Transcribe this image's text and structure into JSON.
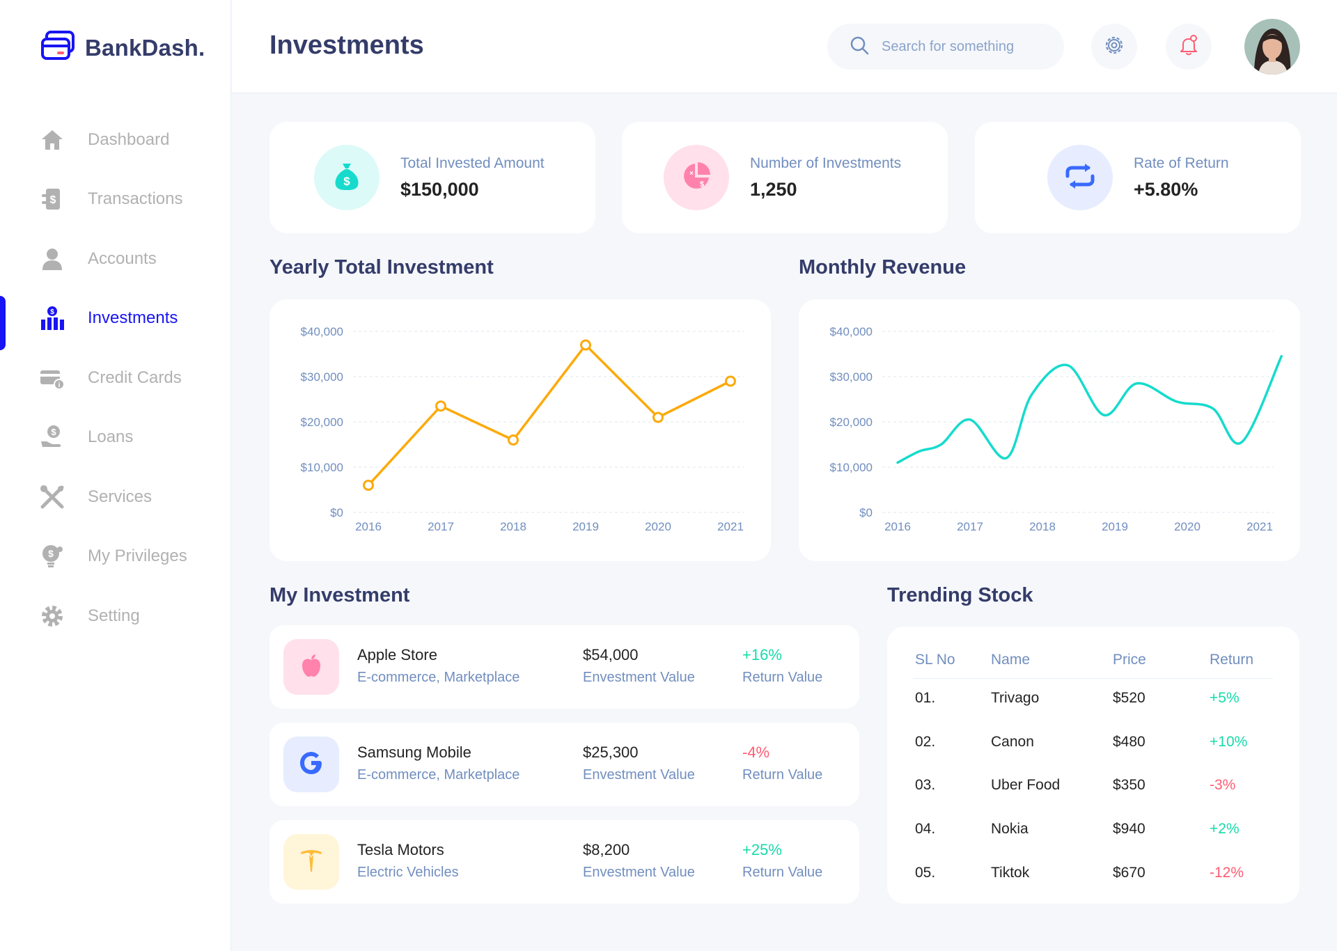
{
  "brand": {
    "name": "BankDash."
  },
  "sidebar": {
    "items": [
      {
        "label": "Dashboard",
        "icon": "home-icon",
        "active": false
      },
      {
        "label": "Transactions",
        "icon": "transfer-icon",
        "active": false
      },
      {
        "label": "Accounts",
        "icon": "user-icon",
        "active": false
      },
      {
        "label": "Investments",
        "icon": "investment-icon",
        "active": true
      },
      {
        "label": "Credit Cards",
        "icon": "credit-card-icon",
        "active": false
      },
      {
        "label": "Loans",
        "icon": "loan-icon",
        "active": false
      },
      {
        "label": "Services",
        "icon": "services-icon",
        "active": false
      },
      {
        "label": "My Privileges",
        "icon": "privileges-icon",
        "active": false
      },
      {
        "label": "Setting",
        "icon": "gear-icon",
        "active": false
      }
    ]
  },
  "header": {
    "title": "Investments",
    "search_placeholder": "Search for something"
  },
  "stats": [
    {
      "label": "Total Invested Amount",
      "value": "$150,000",
      "icon": "money-bag-icon",
      "icon_bg": "#dcfaf8",
      "icon_color": "#16dbcc"
    },
    {
      "label": "Number of Investments",
      "value": "1,250",
      "icon": "pie-chart-icon",
      "icon_bg": "#ffe0eb",
      "icon_color": "#ff82ac"
    },
    {
      "label": "Rate of Return",
      "value": "+5.80%",
      "icon": "repeat-icon",
      "icon_bg": "#e7edff",
      "icon_color": "#396aff"
    }
  ],
  "charts": {
    "yearly_title": "Yearly Total Investment",
    "monthly_title": "Monthly Revenue"
  },
  "chart_data": [
    {
      "type": "line",
      "title": "Yearly Total Investment",
      "categories": [
        "2016",
        "2017",
        "2018",
        "2019",
        "2020",
        "2021"
      ],
      "y_ticks": [
        "$0",
        "$10,000",
        "$20,000",
        "$30,000",
        "$40,000"
      ],
      "ylim": [
        0,
        40000
      ],
      "color": "#fcaa0b",
      "series": [
        {
          "values": [
            6000,
            23500,
            16000,
            37000,
            21000,
            29000
          ]
        }
      ],
      "grid": true
    },
    {
      "type": "line",
      "title": "Monthly Revenue",
      "categories": [
        "2016",
        "2017",
        "2018",
        "2019",
        "2020",
        "2021"
      ],
      "y_ticks": [
        "$0",
        "$10,000",
        "$20,000",
        "$30,000",
        "$40,000"
      ],
      "ylim": [
        0,
        40000
      ],
      "color": "#16dbcc",
      "series": [
        {
          "x": [
            2016,
            2016.3,
            2016.6,
            2017.0,
            2017.5,
            2017.85,
            2018.35,
            2018.85,
            2019.3,
            2019.85,
            2020.35,
            2020.75,
            2021.3
          ],
          "values": [
            11000,
            13500,
            15000,
            20500,
            12000,
            26000,
            32500,
            21500,
            28500,
            24500,
            23000,
            15500,
            34500
          ]
        }
      ],
      "grid": true
    }
  ],
  "my_investment": {
    "title": "My Investment",
    "rows": [
      {
        "name": "Apple Store",
        "category": "E-commerce, Marketplace",
        "value": "$54,000",
        "value_label": "Envestment Value",
        "return": "+16%",
        "return_label": "Return Value",
        "trend": "pos",
        "logo": "apple-icon",
        "logo_bg": "#ffe0eb",
        "logo_color": "#ff82ac"
      },
      {
        "name": "Samsung Mobile",
        "category": "E-commerce, Marketplace",
        "value": "$25,300",
        "value_label": "Envestment Value",
        "return": "-4%",
        "return_label": "Return Value",
        "trend": "neg",
        "logo": "google-icon",
        "logo_bg": "#e7edff",
        "logo_color": "#396aff"
      },
      {
        "name": "Tesla Motors",
        "category": "Electric Vehicles",
        "value": "$8,200",
        "value_label": "Envestment Value",
        "return": "+25%",
        "return_label": "Return Value",
        "trend": "pos",
        "logo": "tesla-icon",
        "logo_bg": "#fff5d9",
        "logo_color": "#ffbb38"
      }
    ]
  },
  "trending": {
    "title": "Trending Stock",
    "headers": [
      "SL No",
      "Name",
      "Price",
      "Return"
    ],
    "rows": [
      {
        "sl": "01.",
        "name": "Trivago",
        "price": "$520",
        "return": "+5%",
        "trend": "pos"
      },
      {
        "sl": "02.",
        "name": "Canon",
        "price": "$480",
        "return": "+10%",
        "trend": "pos"
      },
      {
        "sl": "03.",
        "name": "Uber Food",
        "price": "$350",
        "return": "-3%",
        "trend": "neg"
      },
      {
        "sl": "04.",
        "name": "Nokia",
        "price": "$940",
        "return": "+2%",
        "trend": "pos"
      },
      {
        "sl": "05.",
        "name": "Tiktok",
        "price": "$670",
        "return": "-12%",
        "trend": "neg"
      }
    ]
  }
}
